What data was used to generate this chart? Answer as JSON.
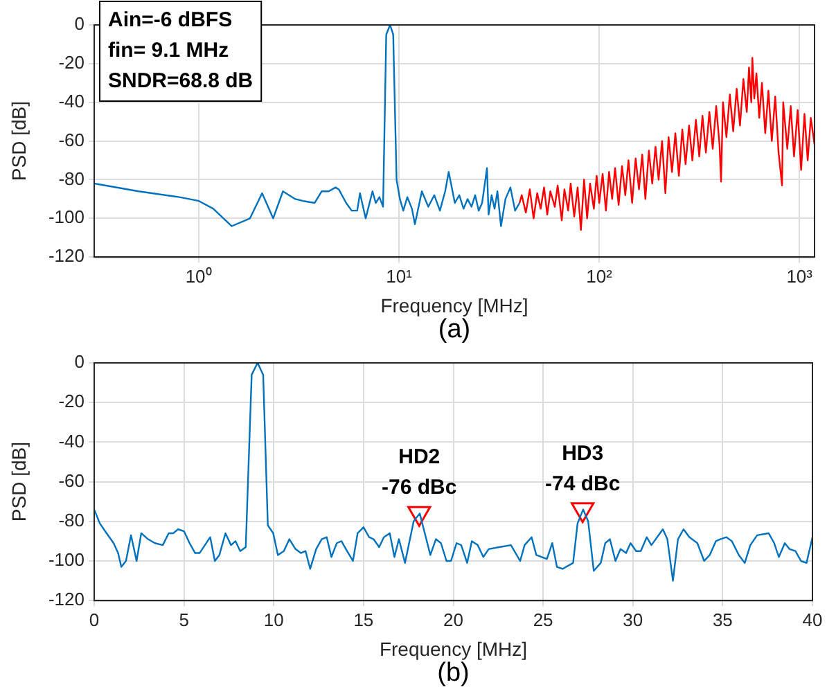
{
  "chart_data": [
    {
      "type": "line",
      "subtitle": "(a)",
      "xlabel": "Frequency [MHz]",
      "ylabel": "PSD [dB]",
      "log": "x",
      "grid": true,
      "legend": false,
      "marker": "none",
      "line_style": "solid",
      "xlim": [
        0.3,
        1190
      ],
      "xticks": [
        {
          "value": 1,
          "label": "10⁰"
        },
        {
          "value": 10,
          "label": "10¹"
        },
        {
          "value": 100,
          "label": "10²"
        },
        {
          "value": 1000,
          "label": "10³"
        }
      ],
      "ylim": [
        -120,
        0
      ],
      "yticks": [
        -120,
        -100,
        -80,
        -60,
        -40,
        -20,
        0
      ],
      "annotations": [
        "Ain=-6 dBFS",
        "fin= 9.1 MHz",
        "SNDR=68.8 dB"
      ],
      "series": [
        {
          "color": "#0072bd",
          "x": [
            0.3,
            0.5,
            0.8,
            1,
            1.18,
            1.46,
            1.8,
            2.07,
            2.35,
            2.63,
            3.03,
            3.32,
            3.79,
            4.11,
            4.45,
            4.82,
            5,
            5.44,
            5.8,
            6.18,
            6.38,
            6.81,
            7.37,
            7.65,
            7.98,
            8.32,
            8.63,
            9.02,
            9.35,
            9.72,
            10.1,
            10.5,
            11,
            11.6,
            12,
            13,
            14,
            15,
            16,
            17,
            17.7,
            19,
            20,
            21,
            22,
            23,
            24,
            25,
            26,
            27.5,
            28,
            29,
            30,
            31,
            32.3,
            34,
            36,
            38,
            40
          ],
          "values": [
            -82,
            -86,
            -89,
            -91,
            -95,
            -104,
            -100,
            -87,
            -100,
            -86,
            -90,
            -91,
            -92,
            -86,
            -86,
            -84,
            -85,
            -92,
            -96,
            -96,
            -87,
            -100,
            -86,
            -92,
            -89,
            -94,
            -5,
            0,
            -5,
            -80,
            -90,
            -96,
            -89,
            -95,
            -103,
            -86,
            -94,
            -88,
            -96,
            -86,
            -76,
            -92,
            -88,
            -95,
            -90,
            -94,
            -88,
            -96,
            -92,
            -74,
            -98,
            -88,
            -95,
            -86,
            -104,
            -90,
            -84,
            -96,
            -92
          ]
        },
        {
          "color": "#ff0000",
          "x": [
            40,
            41,
            43,
            45,
            47,
            49,
            51,
            53,
            55,
            57,
            60,
            62,
            65,
            67,
            70,
            72,
            75,
            78,
            81,
            84,
            87,
            90,
            94,
            97,
            100,
            104,
            108,
            112,
            116,
            120,
            125,
            130,
            135,
            140,
            146,
            152,
            158,
            164,
            170,
            177,
            184,
            191,
            198,
            206,
            214,
            222,
            231,
            240,
            250,
            260,
            270,
            281,
            292,
            304,
            316,
            328,
            341,
            355,
            369,
            384,
            399,
            406,
            415,
            432,
            449,
            467,
            486,
            505,
            525,
            546,
            560,
            575,
            582,
            595,
            610,
            630,
            650,
            675,
            700,
            728,
            757,
            787,
            819,
            830,
            870,
            905,
            940,
            980,
            1020,
            1060,
            1100,
            1140,
            1190
          ],
          "values": [
            -92,
            -88,
            -97,
            -85,
            -100,
            -87,
            -95,
            -84,
            -98,
            -86,
            -94,
            -83,
            -101,
            -85,
            -96,
            -82,
            -99,
            -84,
            -106,
            -80,
            -100,
            -82,
            -95,
            -78,
            -92,
            -77,
            -96,
            -76,
            -90,
            -74,
            -93,
            -73,
            -88,
            -70,
            -92,
            -69,
            -85,
            -67,
            -90,
            -65,
            -82,
            -63,
            -80,
            -60,
            -87,
            -58,
            -76,
            -56,
            -78,
            -54,
            -72,
            -52,
            -70,
            -49,
            -68,
            -47,
            -66,
            -45,
            -64,
            -42,
            -62,
            -81,
            -40,
            -58,
            -36,
            -55,
            -33,
            -52,
            -28,
            -45,
            -22,
            -40,
            -17,
            -38,
            -25,
            -48,
            -30,
            -56,
            -34,
            -60,
            -37,
            -66,
            -83,
            -40,
            -64,
            -42,
            -68,
            -44,
            -75,
            -46,
            -70,
            -48,
            -62
          ]
        }
      ]
    },
    {
      "type": "line",
      "subtitle": "(b)",
      "xlabel": "Frequency [MHz]",
      "ylabel": "PSD [dB]",
      "grid": true,
      "legend": false,
      "line_style": "solid",
      "xlim": [
        0,
        40
      ],
      "xticks": [
        0,
        5,
        10,
        15,
        20,
        25,
        30,
        35,
        40
      ],
      "ylim": [
        -120,
        0
      ],
      "yticks": [
        -120,
        -100,
        -80,
        -60,
        -40,
        -20,
        0
      ],
      "annotations": [
        {
          "text": "HD2\n-76 dBc",
          "x": 18.1,
          "y": -76
        },
        {
          "text": "HD3\n-74 dBc",
          "x": 27.2,
          "y": -74
        }
      ],
      "series": [
        {
          "color": "#0072bd",
          "marker": "none",
          "x": [
            0,
            0.31,
            0.69,
            1.08,
            1.33,
            1.51,
            1.77,
            2.05,
            2.36,
            2.62,
            3,
            3.38,
            3.82,
            4.15,
            4.41,
            4.67,
            5,
            5.31,
            5.62,
            5.87,
            6.46,
            6.72,
            6.97,
            7.31,
            7.62,
            7.87,
            8.13,
            8.44,
            8.77,
            9.1,
            9.41,
            9.67,
            9.97,
            10.23,
            10.56,
            10.87,
            11.21,
            11.51,
            11.77,
            12.03,
            12.36,
            12.67,
            12.95,
            13.21,
            13.51,
            13.77,
            14.08,
            14.41,
            14.67,
            15,
            15.31,
            15.56,
            15.87,
            16.13,
            16.46,
            16.72,
            16.97,
            17.31,
            17.79,
            18.13,
            18.72,
            19.03,
            19.31,
            19.62,
            19.87,
            20.18,
            20.44,
            20.77,
            21.03,
            21.36,
            21.67,
            21.97,
            22.56,
            23.21,
            23.72,
            23.97,
            24.36,
            24.62,
            25.21,
            25.51,
            25.77,
            26.08,
            26.67,
            26.92,
            27.23,
            27.51,
            27.82,
            28.21,
            28.46,
            28.72,
            29.03,
            29.31,
            29.62,
            29.87,
            30.18,
            30.44,
            30.77,
            31.03,
            31.67,
            31.92,
            32.23,
            32.51,
            32.82,
            33.15,
            33.59,
            33.97,
            34.28,
            34.62,
            34.87,
            35.21,
            35.51,
            35.9,
            36.23,
            36.54,
            36.92,
            37.56,
            37.87,
            38.13,
            38.46,
            38.72,
            39.05,
            39.36,
            39.67,
            40
          ],
          "values": [
            -74,
            -81,
            -86,
            -91,
            -96,
            -103,
            -100,
            -87,
            -100,
            -86,
            -89,
            -91,
            -92,
            -86,
            -86,
            -84,
            -85,
            -91,
            -96,
            -96,
            -88,
            -100,
            -97,
            -86,
            -92,
            -90,
            -95,
            -93,
            -6,
            0,
            -6,
            -82,
            -86,
            -97,
            -95,
            -89,
            -94,
            -96,
            -95,
            -104,
            -94,
            -89,
            -88,
            -98,
            -91,
            -90,
            -95,
            -100,
            -86,
            -83,
            -88,
            -89,
            -93,
            -88,
            -86,
            -98,
            -89,
            -101,
            -80,
            -76,
            -97,
            -89,
            -91,
            -100,
            -100,
            -91,
            -92,
            -101,
            -90,
            -92,
            -98,
            -94,
            -93,
            -92,
            -100,
            -92,
            -88,
            -97,
            -99,
            -91,
            -103,
            -104,
            -101,
            -81,
            -74,
            -80,
            -105,
            -101,
            -91,
            -89,
            -100,
            -94,
            -96,
            -91,
            -95,
            -95,
            -88,
            -92,
            -84,
            -89,
            -110,
            -89,
            -84,
            -88,
            -91,
            -100,
            -97,
            -90,
            -89,
            -88,
            -90,
            -97,
            -101,
            -92,
            -87,
            -86,
            -91,
            -98,
            -91,
            -94,
            -95,
            -100,
            -101,
            -88
          ]
        },
        {
          "type": "scatter",
          "color": "#ff0000",
          "marker": "triangle",
          "x": [
            18.1,
            27.2
          ],
          "values": [
            -76,
            -74
          ]
        }
      ]
    }
  ]
}
